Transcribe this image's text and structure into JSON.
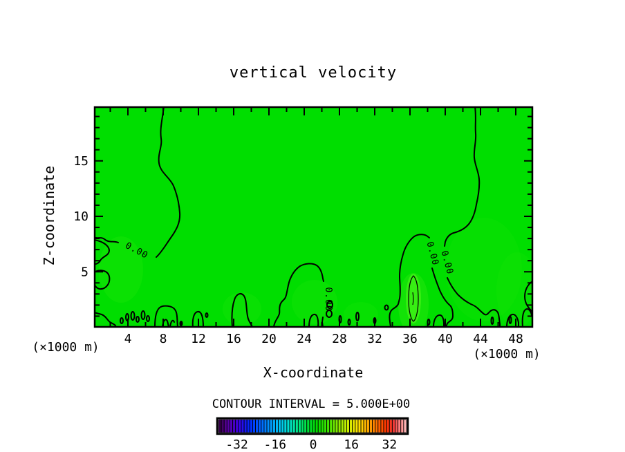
{
  "title": "vertical velocity",
  "axes": {
    "x_label": "X-coordinate",
    "z_label": "Z-coordinate",
    "x_ticks": [
      4,
      8,
      12,
      16,
      20,
      24,
      28,
      32,
      36,
      40,
      44,
      48
    ],
    "z_ticks": [
      5,
      10,
      15
    ],
    "x_unit_left": "(×1000 m)",
    "x_unit_right": "(×1000 m)"
  },
  "contour_labels": [
    "0.00",
    "0.00",
    "0.00",
    "0.00"
  ],
  "footer": {
    "contour_interval_text": "CONTOUR INTERVAL = 5.000E+00"
  },
  "colorbar": {
    "tick_labels": [
      "-32",
      "-16",
      "0",
      "16",
      "32"
    ],
    "tick_values": [
      -32,
      -16,
      0,
      16,
      32
    ],
    "n_cells": 66,
    "palette_stops": [
      [
        0.0,
        "#38004c"
      ],
      [
        0.04,
        "#5a00a0"
      ],
      [
        0.1,
        "#3c00e6"
      ],
      [
        0.16,
        "#0028ff"
      ],
      [
        0.22,
        "#0064ff"
      ],
      [
        0.28,
        "#00a0ff"
      ],
      [
        0.33,
        "#00c8f0"
      ],
      [
        0.38,
        "#00e6c8"
      ],
      [
        0.43,
        "#00e67d"
      ],
      [
        0.48,
        "#00e030"
      ],
      [
        0.52,
        "#00dc00"
      ],
      [
        0.58,
        "#3ce600"
      ],
      [
        0.64,
        "#8ceb00"
      ],
      [
        0.7,
        "#d7ee00"
      ],
      [
        0.75,
        "#ffe100"
      ],
      [
        0.8,
        "#ffaa00"
      ],
      [
        0.85,
        "#ff6e00"
      ],
      [
        0.9,
        "#ff3200"
      ],
      [
        0.94,
        "#f03c3c"
      ],
      [
        0.97,
        "#ff8080"
      ],
      [
        1.0,
        "#ffb4b4"
      ]
    ]
  },
  "colors": {
    "background": "#ffffff",
    "field_fill": "#00de00",
    "field_bright": "#55f71e",
    "contour_line": "#000000",
    "text": "#000000"
  },
  "chart_data": {
    "type": "contour",
    "title": "vertical velocity",
    "xlabel": "X-coordinate",
    "ylabel": "Z-coordinate",
    "x_units": "×1000 m",
    "y_units": "×1000 m",
    "x_ticks": [
      4,
      8,
      12,
      16,
      20,
      24,
      28,
      32,
      36,
      40,
      44,
      48
    ],
    "y_ticks": [
      5,
      10,
      15
    ],
    "x_range": [
      0,
      50
    ],
    "y_range": [
      0,
      20
    ],
    "grid": false,
    "contour_interval": 5.0,
    "displayed_contour_level": 0.0,
    "zero_contour_reaches_top_at_x": [
      8.1,
      43.4
    ],
    "closed_plus_contour": {
      "x": 36.4,
      "z_bottom": 0.5,
      "z_top": 4.6
    },
    "field_description": "Vertical velocity is ~0 over the whole domain (uniform green 0-band fill). The 0.00 contour is convoluted along the lower boundary (z < 2.5) with many small closed cells, two 0.00 contours extend from near the surface to the domain top near x=8 and x=43, and one small closed positive contour (~+5) sits near x=36, z=0.5-4.6.",
    "colorbar": {
      "ticks": [
        -32,
        -16,
        0,
        16,
        32
      ],
      "orientation": "horizontal",
      "position": "bottom"
    }
  }
}
